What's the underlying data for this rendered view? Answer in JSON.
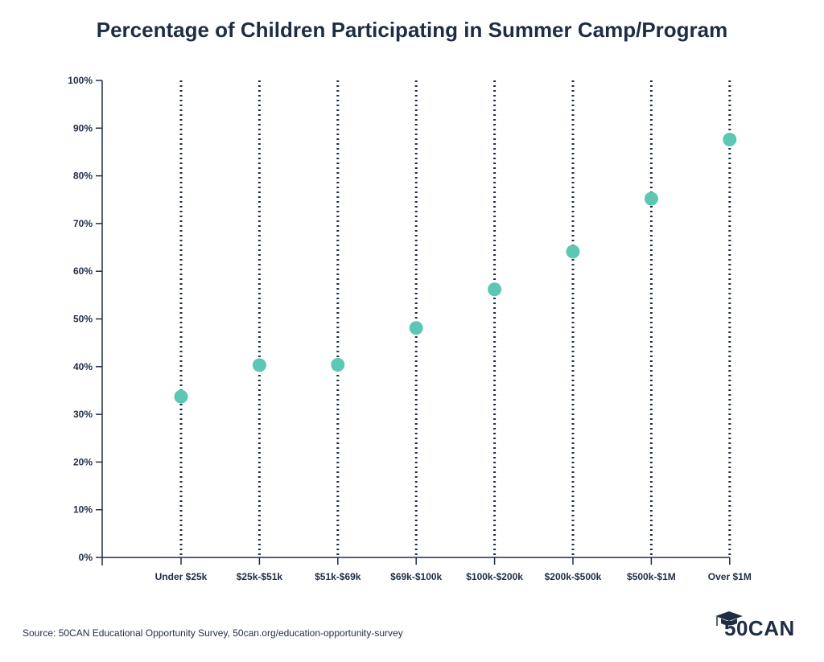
{
  "chart_data": {
    "type": "scatter",
    "title": "Percentage of Children Participating in Summer Camp/Program",
    "categories": [
      "Under $25k",
      "$25k-$51k",
      "$51k-$69k",
      "$69k-$100k",
      "$100k-$200k",
      "$200k-$500k",
      "$500k-$1M",
      "Over $1M"
    ],
    "values": [
      33.7,
      40.3,
      40.4,
      48.1,
      56.2,
      64.1,
      75.2,
      87.6
    ],
    "y_ticks": [
      "0%",
      "10%",
      "20%",
      "30%",
      "40%",
      "50%",
      "60%",
      "70%",
      "80%",
      "90%",
      "100%"
    ],
    "ylim": [
      0,
      100
    ],
    "grid": "dotted vertical lines per category",
    "colors": {
      "marker": "#5cc7b2",
      "text": "#1f2d44",
      "axis": "#1f2d44"
    }
  },
  "source": "Source: 50CAN Educational Opportunity Survey, 50can.org/education-opportunity-survey",
  "logo": {
    "text": "50CAN",
    "icon": "graduation-cap-icon"
  }
}
